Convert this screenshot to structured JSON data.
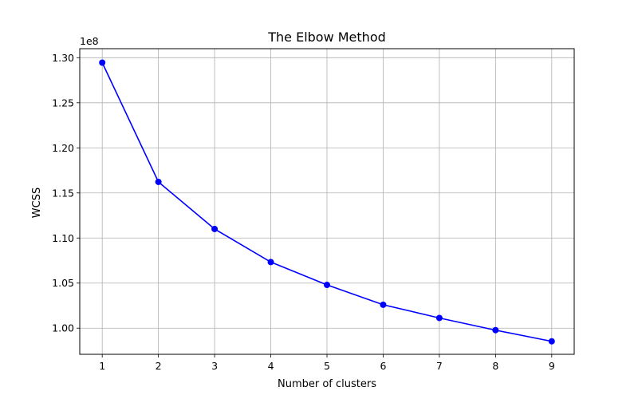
{
  "chart_data": {
    "type": "line",
    "title": "The Elbow Method",
    "xlabel": "Number of clusters",
    "ylabel": "WCSS",
    "y_offset_label": "1e8",
    "x": [
      1,
      2,
      3,
      4,
      5,
      6,
      7,
      8,
      9
    ],
    "y_scaled": [
      1.2945,
      1.1622,
      1.11,
      1.0733,
      1.048,
      1.026,
      1.0113,
      0.9978,
      0.9854
    ],
    "xlim": [
      0.6,
      9.4
    ],
    "ylim": [
      0.971,
      1.31
    ],
    "x_ticks": [
      1,
      2,
      3,
      4,
      5,
      6,
      7,
      8,
      9
    ],
    "y_ticks": [
      1.0,
      1.05,
      1.1,
      1.15,
      1.2,
      1.25,
      1.3
    ],
    "y_tick_labels": [
      "1.00",
      "1.05",
      "1.10",
      "1.15",
      "1.20",
      "1.25",
      "1.30"
    ],
    "grid": true,
    "marker": "circle",
    "line_color": "#0000ff"
  }
}
